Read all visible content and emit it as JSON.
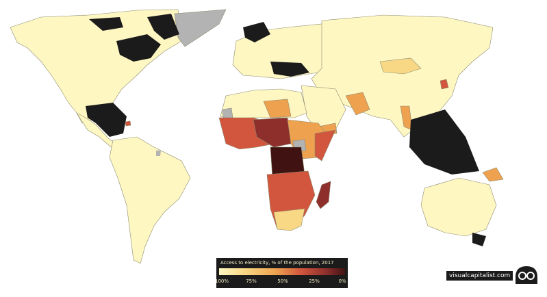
{
  "legend": {
    "title": "Access to electricity, % of the population, 2017",
    "ticks": [
      "100%",
      "75%",
      "50%",
      "25%",
      "0%"
    ]
  },
  "brand": {
    "text": "visualcapitalist.com",
    "logo_icon": "visual-capitalist-logo-icon"
  },
  "colors": {
    "land_full_access": "#fff7c2",
    "no_data": "#b3b3b3",
    "water": "#1b1b1b",
    "low_access": "#401212",
    "mid_access": "#d1563d"
  }
}
